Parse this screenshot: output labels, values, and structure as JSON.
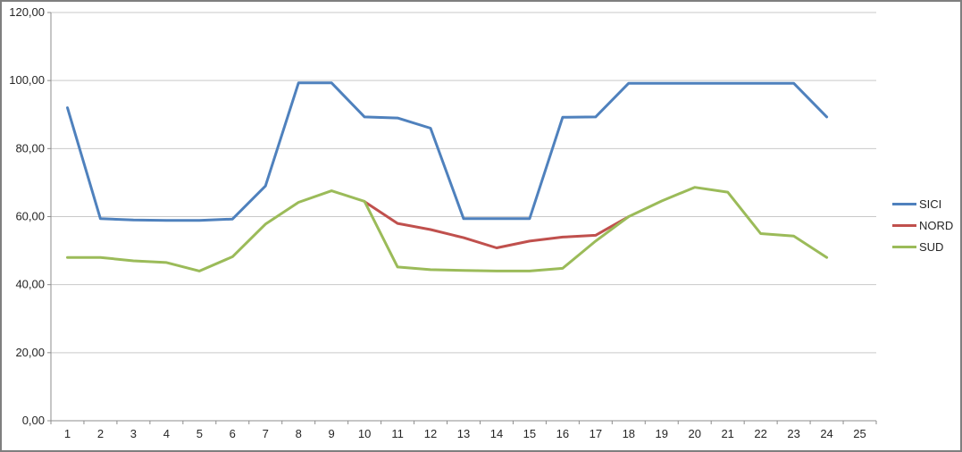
{
  "chart_data": {
    "type": "line",
    "title": "",
    "xlabel": "",
    "ylabel": "",
    "categories": [
      "1",
      "2",
      "3",
      "4",
      "5",
      "6",
      "7",
      "8",
      "9",
      "10",
      "11",
      "12",
      "13",
      "14",
      "15",
      "16",
      "17",
      "18",
      "19",
      "20",
      "21",
      "22",
      "23",
      "24",
      "25"
    ],
    "y_axis": {
      "min": 0,
      "max": 120,
      "step": 20,
      "tick_labels": [
        "0,00",
        "20,00",
        "40,00",
        "60,00",
        "80,00",
        "100,00",
        "120,00"
      ],
      "number_format": "comma-decimal"
    },
    "ylim": [
      0,
      120
    ],
    "grid": true,
    "legend_position": "right",
    "series": [
      {
        "name": "SICI",
        "color": "#4F81BD",
        "values": [
          92.0,
          59.4,
          59.0,
          58.9,
          58.9,
          59.3,
          69.0,
          99.3,
          99.3,
          89.3,
          89.0,
          86.0,
          59.4,
          59.4,
          59.4,
          89.2,
          89.3,
          99.2,
          99.2,
          99.2,
          99.2,
          99.2,
          99.2,
          89.3,
          null
        ]
      },
      {
        "name": "NORD",
        "color": "#C0504D",
        "values": [
          null,
          null,
          null,
          null,
          null,
          null,
          null,
          null,
          null,
          64.4,
          58.0,
          56.2,
          53.8,
          50.8,
          52.8,
          54.0,
          54.5,
          60.0,
          null,
          null,
          null,
          null,
          null,
          null,
          null
        ]
      },
      {
        "name": "SUD",
        "color": "#9BBB59",
        "values": [
          48.0,
          48.0,
          47.0,
          46.5,
          44.0,
          48.2,
          57.8,
          64.2,
          67.6,
          64.5,
          45.2,
          44.4,
          44.2,
          44.0,
          44.0,
          44.8,
          52.8,
          60.0,
          64.6,
          68.6,
          67.2,
          55.0,
          54.3,
          48.0,
          null
        ]
      }
    ]
  },
  "style_colors": {
    "gridline": "#C9C9C9",
    "axis": "#8C8C8C",
    "frame_border": "#7F7F7F",
    "label_text": "#262626"
  }
}
